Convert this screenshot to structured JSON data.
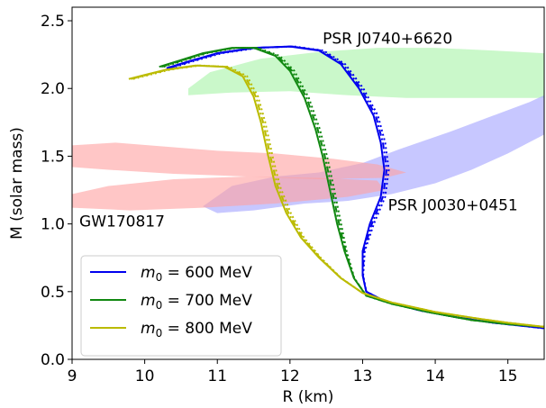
{
  "chart_data": {
    "type": "line",
    "xlabel": "R (km)",
    "ylabel": "M (solar mass)",
    "xlim": [
      9,
      15.5
    ],
    "ylim": [
      0.0,
      2.6
    ],
    "xticks": [
      "9",
      "10",
      "11",
      "12",
      "13",
      "14",
      "15"
    ],
    "yticks": [
      "0.0",
      "0.5",
      "1.0",
      "1.5",
      "2.0",
      "2.5"
    ],
    "grid": false,
    "legend_position": "lower-left",
    "annotations": [
      {
        "text": "PSR J0740+6620",
        "x": 12.45,
        "y": 2.33
      },
      {
        "text": "PSR J0030+0451",
        "x": 13.35,
        "y": 1.1
      },
      {
        "text": "GW170817",
        "x": 9.1,
        "y": 0.98
      }
    ],
    "regions": [
      {
        "label": "PSR J0740+6620",
        "color": "#b3f5b3",
        "opacity": 0.7,
        "polygon": [
          [
            10.6,
            2.0
          ],
          [
            10.9,
            2.12
          ],
          [
            11.6,
            2.22
          ],
          [
            12.4,
            2.27
          ],
          [
            13.2,
            2.3
          ],
          [
            14.0,
            2.3
          ],
          [
            14.8,
            2.28
          ],
          [
            15.5,
            2.26
          ],
          [
            15.5,
            1.93
          ],
          [
            14.6,
            1.93
          ],
          [
            13.6,
            1.93
          ],
          [
            12.8,
            1.95
          ],
          [
            12.0,
            1.98
          ],
          [
            11.2,
            1.97
          ],
          [
            10.6,
            1.95
          ]
        ]
      },
      {
        "label": "PSR J0030+0451",
        "color": "#a9a9ff",
        "opacity": 0.65,
        "polygon": [
          [
            10.8,
            1.13
          ],
          [
            11.2,
            1.28
          ],
          [
            11.8,
            1.35
          ],
          [
            12.4,
            1.38
          ],
          [
            13.0,
            1.45
          ],
          [
            13.5,
            1.55
          ],
          [
            14.2,
            1.68
          ],
          [
            14.8,
            1.8
          ],
          [
            15.3,
            1.9
          ],
          [
            15.5,
            1.95
          ],
          [
            15.5,
            1.66
          ],
          [
            15.0,
            1.52
          ],
          [
            14.5,
            1.4
          ],
          [
            14.0,
            1.3
          ],
          [
            13.4,
            1.22
          ],
          [
            12.8,
            1.17
          ],
          [
            12.2,
            1.15
          ],
          [
            11.5,
            1.1
          ],
          [
            11.0,
            1.08
          ]
        ]
      },
      {
        "label": "GW170817 upper",
        "color": "#ffa0a0",
        "opacity": 0.6,
        "polygon": [
          [
            9.0,
            1.58
          ],
          [
            9.6,
            1.6
          ],
          [
            10.3,
            1.57
          ],
          [
            11.0,
            1.54
          ],
          [
            11.8,
            1.52
          ],
          [
            12.6,
            1.48
          ],
          [
            13.2,
            1.44
          ],
          [
            13.6,
            1.38
          ],
          [
            13.3,
            1.34
          ],
          [
            12.4,
            1.33
          ],
          [
            11.4,
            1.35
          ],
          [
            10.4,
            1.37
          ],
          [
            9.5,
            1.4
          ],
          [
            9.0,
            1.42
          ]
        ]
      },
      {
        "label": "GW170817 lower",
        "color": "#ffa0a0",
        "opacity": 0.6,
        "polygon": [
          [
            9.0,
            1.22
          ],
          [
            9.5,
            1.28
          ],
          [
            10.4,
            1.33
          ],
          [
            11.4,
            1.35
          ],
          [
            12.4,
            1.34
          ],
          [
            13.2,
            1.32
          ],
          [
            13.3,
            1.25
          ],
          [
            12.8,
            1.2
          ],
          [
            11.8,
            1.15
          ],
          [
            10.8,
            1.12
          ],
          [
            9.8,
            1.1
          ],
          [
            9.0,
            1.12
          ]
        ]
      }
    ],
    "series": [
      {
        "name": "m0 = 600 MeV",
        "label_html": "600",
        "color": "#0000ee",
        "points": [
          [
            10.3,
            2.15
          ],
          [
            10.6,
            2.2
          ],
          [
            11.0,
            2.26
          ],
          [
            11.5,
            2.3
          ],
          [
            12.0,
            2.31
          ],
          [
            12.4,
            2.28
          ],
          [
            12.7,
            2.18
          ],
          [
            12.95,
            2.0
          ],
          [
            13.15,
            1.8
          ],
          [
            13.25,
            1.6
          ],
          [
            13.3,
            1.4
          ],
          [
            13.25,
            1.2
          ],
          [
            13.1,
            1.0
          ],
          [
            13.0,
            0.8
          ],
          [
            13.0,
            0.62
          ],
          [
            13.05,
            0.5
          ],
          [
            13.3,
            0.43
          ],
          [
            13.8,
            0.36
          ],
          [
            14.3,
            0.31
          ],
          [
            14.8,
            0.27
          ],
          [
            15.5,
            0.23
          ]
        ]
      },
      {
        "name": "m0 = 700 MeV",
        "label_html": "700",
        "color": "#118811",
        "points": [
          [
            10.2,
            2.16
          ],
          [
            10.5,
            2.21
          ],
          [
            10.8,
            2.26
          ],
          [
            11.2,
            2.3
          ],
          [
            11.5,
            2.3
          ],
          [
            11.8,
            2.24
          ],
          [
            12.0,
            2.13
          ],
          [
            12.2,
            1.93
          ],
          [
            12.35,
            1.7
          ],
          [
            12.45,
            1.5
          ],
          [
            12.55,
            1.25
          ],
          [
            12.65,
            1.0
          ],
          [
            12.75,
            0.8
          ],
          [
            12.88,
            0.6
          ],
          [
            13.05,
            0.47
          ],
          [
            13.4,
            0.41
          ],
          [
            13.9,
            0.35
          ],
          [
            14.5,
            0.29
          ],
          [
            15.0,
            0.26
          ],
          [
            15.5,
            0.24
          ]
        ]
      },
      {
        "name": "m0 = 800 MeV",
        "label_html": "800",
        "color": "#bbbb00",
        "points": [
          [
            9.78,
            2.07
          ],
          [
            10.0,
            2.1
          ],
          [
            10.3,
            2.14
          ],
          [
            10.7,
            2.17
          ],
          [
            11.1,
            2.16
          ],
          [
            11.35,
            2.09
          ],
          [
            11.5,
            1.94
          ],
          [
            11.6,
            1.75
          ],
          [
            11.7,
            1.5
          ],
          [
            11.8,
            1.28
          ],
          [
            11.95,
            1.08
          ],
          [
            12.15,
            0.9
          ],
          [
            12.4,
            0.75
          ],
          [
            12.7,
            0.6
          ],
          [
            13.0,
            0.49
          ],
          [
            13.4,
            0.42
          ],
          [
            14.0,
            0.35
          ],
          [
            14.6,
            0.3
          ],
          [
            15.0,
            0.27
          ],
          [
            15.5,
            0.24
          ]
        ]
      }
    ],
    "legend": [
      {
        "prefix": "m",
        "sub": "0",
        "value": " = 600 MeV",
        "color": "#0000ee"
      },
      {
        "prefix": "m",
        "sub": "0",
        "value": " = 700 MeV",
        "color": "#118811"
      },
      {
        "prefix": "m",
        "sub": "0",
        "value": " = 800 MeV",
        "color": "#bbbb00"
      }
    ]
  }
}
